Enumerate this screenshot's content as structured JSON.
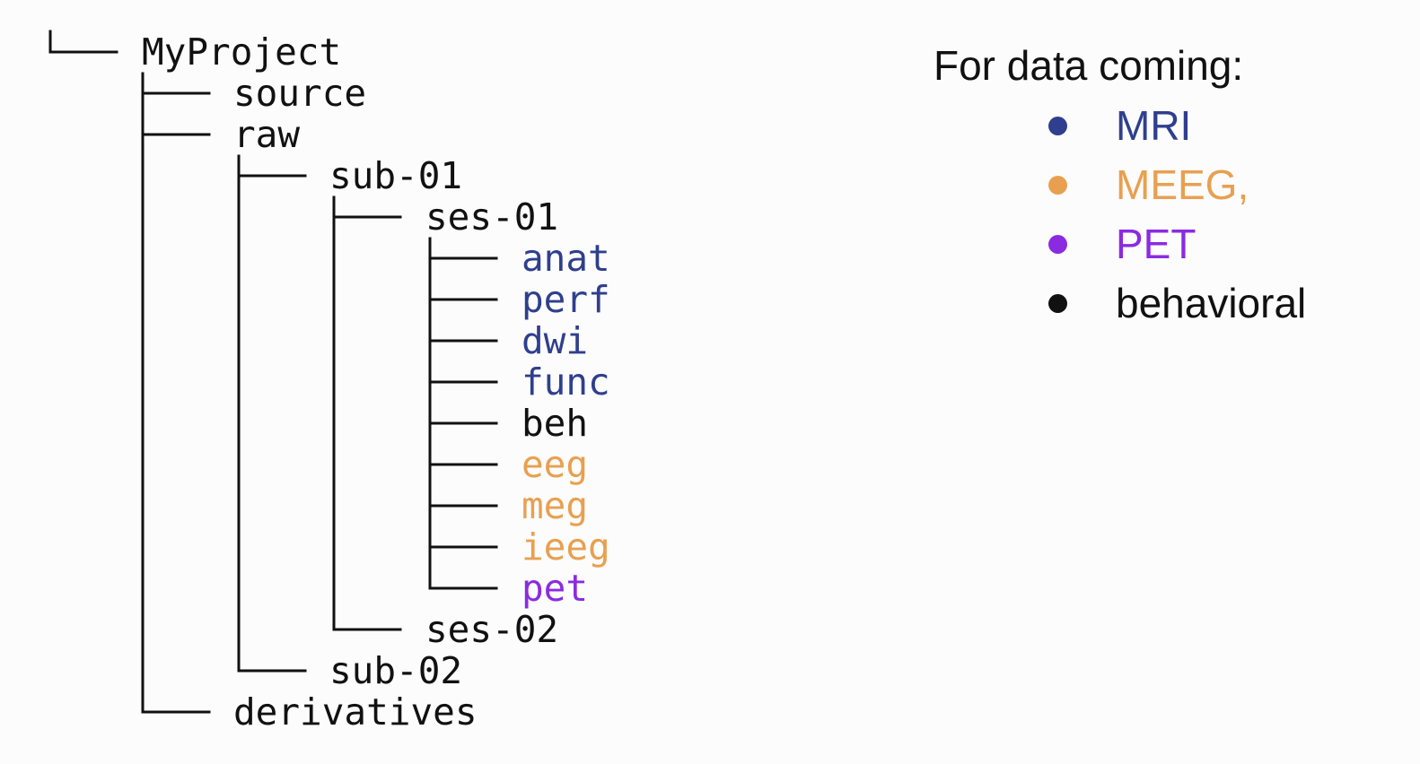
{
  "tree": {
    "root": "MyProject",
    "source": "source",
    "raw": "raw",
    "sub01": "sub-01",
    "ses01": "ses-01",
    "anat": "anat",
    "perf": "perf",
    "dwi": "dwi",
    "func": "func",
    "beh": "beh",
    "eeg": "eeg",
    "meg": "meg",
    "ieeg": "ieeg",
    "pet": "pet",
    "ses02": "ses-02",
    "sub02": "sub-02",
    "derivatives": "derivatives"
  },
  "legend": {
    "title": "For data coming:",
    "items": [
      {
        "label": "MRI",
        "color": "#2f3f8e"
      },
      {
        "label": "MEEG,",
        "color": "#e8a050"
      },
      {
        "label": "PET",
        "color": "#8a2be2"
      },
      {
        "label": "behavioral",
        "color": "#111111"
      }
    ]
  },
  "colors": {
    "mri": "#2f3f8e",
    "meeg": "#e8a050",
    "pet": "#8a2be2",
    "behavioral": "#111111"
  }
}
